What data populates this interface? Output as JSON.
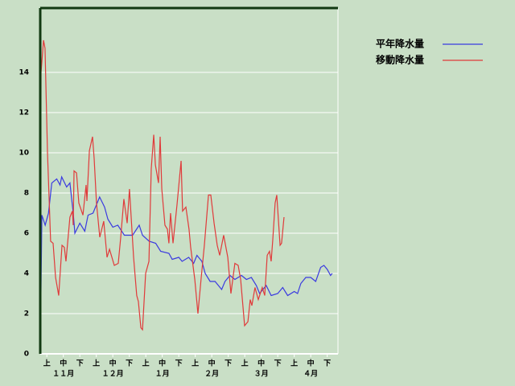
{
  "chart_data": {
    "type": "line",
    "xlim": [
      0,
      180.5
    ],
    "ylim": [
      0,
      17.2
    ],
    "yticks": [
      0,
      2,
      4,
      6,
      8,
      10,
      12,
      14
    ],
    "grid": true,
    "xticks": [
      {
        "value": 4,
        "label": "上"
      },
      {
        "value": 14,
        "label": "中"
      },
      {
        "value": 24,
        "label": "下"
      },
      {
        "value": 34,
        "label": "上"
      },
      {
        "value": 44,
        "label": "中"
      },
      {
        "value": 54,
        "label": "下"
      },
      {
        "value": 64,
        "label": "上"
      },
      {
        "value": 74,
        "label": "中"
      },
      {
        "value": 84,
        "label": "下"
      },
      {
        "value": 94,
        "label": "上"
      },
      {
        "value": 104,
        "label": "中"
      },
      {
        "value": 114,
        "label": "下"
      },
      {
        "value": 124,
        "label": "上"
      },
      {
        "value": 134,
        "label": "中"
      },
      {
        "value": 144,
        "label": "下"
      },
      {
        "value": 154,
        "label": "上"
      },
      {
        "value": 164,
        "label": "中"
      },
      {
        "value": 174,
        "label": "下"
      }
    ],
    "month_labels": [
      {
        "value": 14,
        "label": "１１月"
      },
      {
        "value": 44,
        "label": "１２月"
      },
      {
        "value": 74,
        "label": "１月"
      },
      {
        "value": 104,
        "label": "２月"
      },
      {
        "value": 134,
        "label": "３月"
      },
      {
        "value": 164,
        "label": "４月"
      }
    ],
    "series": [
      {
        "name": "平年降水量",
        "color": "#3a3ae0",
        "x": [
          0,
          1,
          3,
          5,
          7,
          10,
          12,
          13,
          16,
          18,
          20,
          21,
          24,
          27,
          29,
          32,
          36,
          39,
          41,
          44,
          47,
          51,
          56,
          60,
          62,
          66,
          70,
          73,
          78,
          80,
          84,
          86,
          90,
          93,
          95,
          98,
          100,
          103,
          106,
          110,
          112,
          115,
          118,
          122,
          125,
          128,
          131,
          133,
          137,
          140,
          144,
          147,
          150,
          154,
          156,
          158,
          161,
          164,
          167,
          170,
          172,
          174,
          176,
          177
        ],
        "values": [
          0,
          6.9,
          6.4,
          7.0,
          8.5,
          8.7,
          8.4,
          8.8,
          8.3,
          8.5,
          7.0,
          6.0,
          6.5,
          6.1,
          6.9,
          7.0,
          7.8,
          7.3,
          6.7,
          6.3,
          6.4,
          5.9,
          5.9,
          6.4,
          5.9,
          5.6,
          5.5,
          5.1,
          5.0,
          4.7,
          4.8,
          4.6,
          4.8,
          4.5,
          4.9,
          4.6,
          4.0,
          3.6,
          3.6,
          3.2,
          3.6,
          3.9,
          3.7,
          3.9,
          3.7,
          3.8,
          3.4,
          3.0,
          3.4,
          2.9,
          3.0,
          3.3,
          2.9,
          3.1,
          3.0,
          3.5,
          3.8,
          3.8,
          3.6,
          4.3,
          4.4,
          4.2,
          3.9,
          4.0
        ]
      },
      {
        "name": "移動降水量",
        "color": "#e03a3a",
        "x": [
          0,
          0.5,
          2,
          2.9,
          4.4,
          6.3,
          7.8,
          9.3,
          11.2,
          13.2,
          14.6,
          15.6,
          18,
          19.5,
          20,
          20.5,
          22,
          23.4,
          25.9,
          27.8,
          28.3,
          29.8,
          31.7,
          32.7,
          34.1,
          36.1,
          38.5,
          40.5,
          42,
          44.9,
          47.3,
          48.8,
          50.7,
          52.7,
          54.1,
          56.6,
          58.5,
          59.5,
          61,
          62,
          63.9,
          65.9,
          67.3,
          68.8,
          69.8,
          71.7,
          72.7,
          73.7,
          75.6,
          77.1,
          78,
          79,
          80.5,
          82.9,
          85.4,
          86.3,
          88.3,
          90.2,
          91.2,
          93.7,
          95.6,
          97.6,
          99.5,
          102,
          103.4,
          105.4,
          107.3,
          108.8,
          111.2,
          113.7,
          115.6,
          118,
          120,
          121.5,
          123.9,
          125.9,
          127.3,
          128.3,
          130.2,
          132.2,
          134.6,
          136.1,
          137.6,
          139,
          140,
          141,
          142.4,
          143.4,
          145.4,
          146.3,
          147.8
        ],
        "values": [
          0,
          14,
          15.6,
          15.2,
          10,
          5.6,
          5.5,
          3.8,
          2.9,
          5.4,
          5.3,
          4.6,
          6.8,
          7.1,
          6.4,
          9.1,
          9.0,
          7.5,
          6.9,
          8.4,
          7.6,
          10.1,
          10.8,
          9.7,
          7.5,
          5.8,
          6.6,
          4.8,
          5.2,
          4.4,
          4.5,
          5.8,
          7.7,
          6.5,
          8.2,
          4.8,
          2.9,
          2.6,
          1.3,
          1.2,
          4.0,
          4.6,
          9.2,
          10.9,
          9.4,
          8.5,
          10.8,
          8.2,
          6.4,
          6.2,
          5.5,
          7.0,
          5.5,
          7.4,
          9.6,
          7.1,
          7.3,
          6.2,
          5.3,
          3.7,
          2.0,
          3.8,
          5.4,
          7.9,
          7.9,
          6.5,
          5.4,
          4.9,
          5.9,
          4.8,
          3.0,
          4.5,
          4.4,
          3.7,
          1.4,
          1.6,
          2.7,
          2.4,
          3.3,
          2.7,
          3.3,
          2.9,
          4.9,
          5.1,
          4.6,
          5.7,
          7.5,
          7.9,
          5.4,
          5.5,
          6.8
        ]
      }
    ]
  }
}
